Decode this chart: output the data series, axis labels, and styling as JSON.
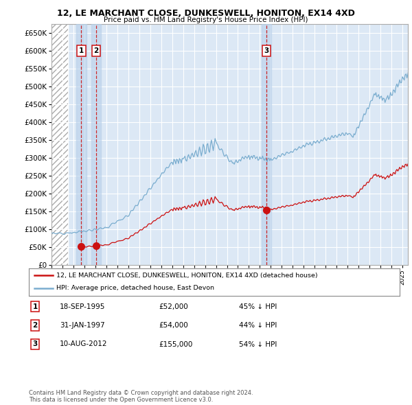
{
  "title": "12, LE MARCHANT CLOSE, DUNKESWELL, HONITON, EX14 4XD",
  "subtitle": "Price paid vs. HM Land Registry's House Price Index (HPI)",
  "legend_label_red": "12, LE MARCHANT CLOSE, DUNKESWELL, HONITON, EX14 4XD (detached house)",
  "legend_label_blue": "HPI: Average price, detached house, East Devon",
  "transactions": [
    {
      "num": 1,
      "date": "18-SEP-1995",
      "price": 52000,
      "year": 1995.72,
      "hpi_pct": "45% ↓ HPI"
    },
    {
      "num": 2,
      "date": "31-JAN-1997",
      "price": 54000,
      "year": 1997.08,
      "hpi_pct": "44% ↓ HPI"
    },
    {
      "num": 3,
      "date": "10-AUG-2012",
      "price": 155000,
      "year": 2012.61,
      "hpi_pct": "54% ↓ HPI"
    }
  ],
  "footer_line1": "Contains HM Land Registry data © Crown copyright and database right 2024.",
  "footer_line2": "This data is licensed under the Open Government Licence v3.0.",
  "ylim": [
    0,
    675000
  ],
  "yticks": [
    0,
    50000,
    100000,
    150000,
    200000,
    250000,
    300000,
    350000,
    400000,
    450000,
    500000,
    550000,
    600000,
    650000
  ],
  "xmin": 1993.0,
  "xmax": 2025.5,
  "hatch_end": 1994.5,
  "hpi_color": "#7aadcf",
  "price_color": "#cc1111",
  "bg_color": "#dce8f5",
  "shade_color": "#b8d0ea"
}
